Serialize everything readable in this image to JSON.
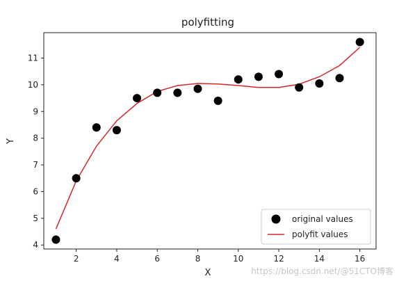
{
  "chart_data": {
    "type": "scatter",
    "title": "polyfitting",
    "xlabel": "X",
    "ylabel": "Y",
    "xlim": [
      0.4,
      16.8
    ],
    "ylim": [
      3.85,
      11.95
    ],
    "xticks": [
      2,
      4,
      6,
      8,
      10,
      12,
      14,
      16
    ],
    "yticks": [
      4,
      5,
      6,
      7,
      8,
      9,
      10,
      11
    ],
    "grid": false,
    "legend_position": "lower-right",
    "series": [
      {
        "name": "original values",
        "type": "scatter",
        "color": "#000000",
        "x": [
          1,
          2,
          3,
          4,
          5,
          6,
          7,
          8,
          9,
          10,
          11,
          12,
          13,
          14,
          15,
          16
        ],
        "y": [
          4.2,
          6.5,
          8.4,
          8.3,
          9.5,
          9.7,
          9.7,
          9.85,
          9.4,
          10.2,
          10.3,
          10.4,
          9.9,
          10.05,
          10.25,
          11.6
        ]
      },
      {
        "name": "polyfit values",
        "type": "line",
        "color": "#d62728",
        "x": [
          1,
          2,
          3,
          4,
          5,
          6,
          7,
          8,
          9,
          10,
          11,
          12,
          13,
          14,
          15,
          16
        ],
        "y": [
          4.6,
          6.4,
          7.7,
          8.65,
          9.3,
          9.75,
          9.97,
          10.05,
          10.03,
          9.97,
          9.9,
          9.9,
          10.02,
          10.3,
          10.72,
          11.4
        ]
      }
    ]
  },
  "watermark": "https://blog.csdn.net/@51CTO博客"
}
